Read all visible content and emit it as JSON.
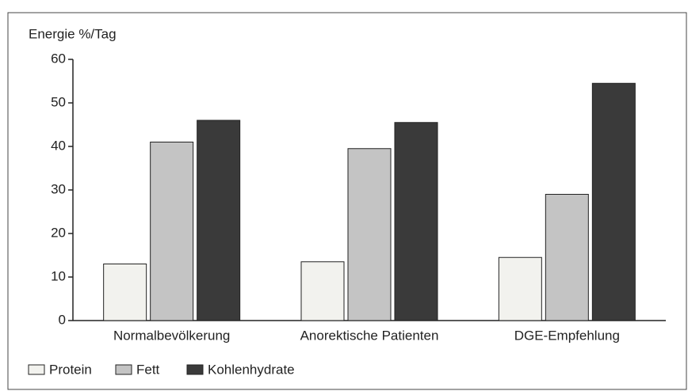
{
  "chart_data": {
    "type": "bar",
    "y_label": "Energie %/Tag",
    "categories": [
      "Normalbevölkerung",
      "Anorektische Patienten",
      "DGE-Empfehlung"
    ],
    "series": [
      {
        "name": "Protein",
        "color": "#f2f2ee",
        "values": [
          13,
          13.5,
          14.5
        ]
      },
      {
        "name": "Fett",
        "color": "#c4c4c4",
        "values": [
          41,
          39.5,
          29
        ]
      },
      {
        "name": "Kohlenhydrate",
        "color": "#3a3a3a",
        "values": [
          46,
          45.5,
          54.5
        ]
      }
    ],
    "ylim": [
      0,
      60
    ],
    "yticks": [
      0,
      10,
      20,
      30,
      40,
      50,
      60
    ],
    "legend": "bottom-left"
  }
}
